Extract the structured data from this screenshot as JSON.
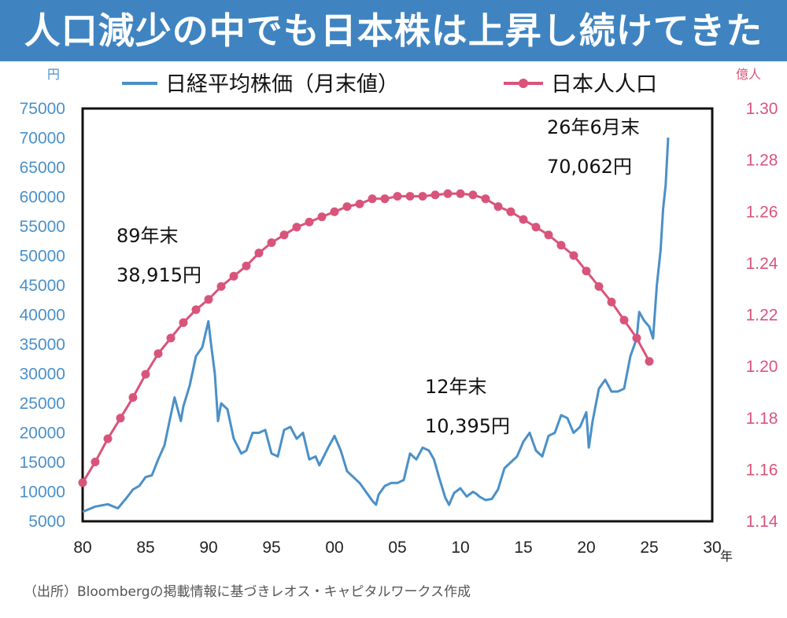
{
  "header": {
    "title": "人口減少の中でも日本株は上昇し続けてきた"
  },
  "source": "（出所）Bloombergの掲載情報に基づきレオス・キャピタルワークス作成",
  "colors": {
    "banner": "#3f84c1",
    "nikkei": "#4a90c8",
    "population": "#d9547a"
  },
  "chart_data": {
    "type": "line",
    "title": "人口減少の中でも日本株は上昇し続けてきた",
    "x_axis": {
      "unit": "年",
      "range": [
        1980,
        2030
      ],
      "ticks": [
        {
          "v": 1980,
          "label": "80"
        },
        {
          "v": 1985,
          "label": "85"
        },
        {
          "v": 1990,
          "label": "90"
        },
        {
          "v": 1995,
          "label": "95"
        },
        {
          "v": 2000,
          "label": "00"
        },
        {
          "v": 2005,
          "label": "05"
        },
        {
          "v": 2010,
          "label": "10"
        },
        {
          "v": 2015,
          "label": "15"
        },
        {
          "v": 2020,
          "label": "20"
        },
        {
          "v": 2025,
          "label": "25"
        },
        {
          "v": 2030,
          "label": "30"
        }
      ]
    },
    "y_left": {
      "unit": "円",
      "range": [
        5000,
        75000
      ],
      "ticks": [
        "75000",
        "70000",
        "65000",
        "60000",
        "55000",
        "50000",
        "45000",
        "40000",
        "35000",
        "30000",
        "25000",
        "20000",
        "15000",
        "10000",
        "5000"
      ]
    },
    "y_right": {
      "unit": "億人",
      "range": [
        1.14,
        1.3
      ],
      "ticks": [
        "1.30",
        "1.28",
        "1.26",
        "1.24",
        "1.22",
        "1.20",
        "1.18",
        "1.16",
        "1.14"
      ]
    },
    "legend_position": "top",
    "series": [
      {
        "name": "日経平均株価（月末値）",
        "axis": "left",
        "style": "line",
        "x": [
          1980.0,
          1981.0,
          1982.0,
          1982.8,
          1983.5,
          1984.0,
          1984.5,
          1985.0,
          1985.5,
          1986.0,
          1986.5,
          1987.0,
          1987.3,
          1987.8,
          1988.0,
          1988.5,
          1989.0,
          1989.5,
          1989.99,
          1990.2,
          1990.5,
          1990.75,
          1991.0,
          1991.5,
          1992.0,
          1992.6,
          1993.0,
          1993.5,
          1994.0,
          1994.5,
          1995.0,
          1995.5,
          1996.0,
          1996.5,
          1997.0,
          1997.5,
          1998.0,
          1998.5,
          1998.8,
          1999.5,
          2000.0,
          2000.5,
          2001.0,
          2001.5,
          2002.0,
          2002.5,
          2003.0,
          2003.3,
          2003.5,
          2004.0,
          2004.5,
          2005.0,
          2005.5,
          2006.0,
          2006.5,
          2007.0,
          2007.5,
          2007.9,
          2008.3,
          2008.8,
          2009.1,
          2009.5,
          2010.0,
          2010.5,
          2011.0,
          2011.3,
          2011.5,
          2012.0,
          2012.5,
          2012.99,
          2013.5,
          2014.0,
          2014.5,
          2015.0,
          2015.5,
          2016.0,
          2016.5,
          2017.0,
          2017.5,
          2018.0,
          2018.5,
          2018.99,
          2019.5,
          2020.0,
          2020.2,
          2020.5,
          2021.0,
          2021.5,
          2022.0,
          2022.5,
          2023.0,
          2023.5,
          2024.0,
          2024.2,
          2024.6,
          2025.0,
          2025.3,
          2025.6,
          2025.9,
          2026.1,
          2026.3,
          2026.5
        ],
        "y": [
          6600,
          7500,
          7900,
          7200,
          9000,
          10400,
          11000,
          12500,
          12800,
          15500,
          17900,
          23000,
          26000,
          22000,
          24500,
          28000,
          33000,
          34500,
          38915,
          35000,
          30000,
          22000,
          25000,
          24000,
          19000,
          16500,
          17000,
          20000,
          20000,
          20500,
          16500,
          16000,
          20500,
          21000,
          19000,
          20000,
          15500,
          16000,
          14500,
          17500,
          19500,
          17000,
          13500,
          12500,
          11500,
          10000,
          8500,
          7800,
          9500,
          11000,
          11500,
          11500,
          12000,
          16500,
          15500,
          17500,
          17000,
          15500,
          12500,
          9000,
          7800,
          9800,
          10600,
          9200,
          10000,
          9600,
          9200,
          8600,
          8800,
          10395,
          14000,
          15000,
          16000,
          18500,
          20000,
          17000,
          16000,
          19500,
          20000,
          23000,
          22500,
          20000,
          21000,
          23500,
          17500,
          22000,
          27500,
          29000,
          27000,
          27000,
          27500,
          33000,
          36000,
          40500,
          39000,
          38000,
          36000,
          45000,
          51000,
          58000,
          62000,
          70062
        ]
      },
      {
        "name": "日本人人口",
        "axis": "right",
        "style": "line-markers",
        "x": [
          1980,
          1981,
          1982,
          1983,
          1984,
          1985,
          1986,
          1987,
          1988,
          1989,
          1990,
          1991,
          1992,
          1993,
          1994,
          1995,
          1996,
          1997,
          1998,
          1999,
          2000,
          2001,
          2002,
          2003,
          2004,
          2005,
          2006,
          2007,
          2008,
          2009,
          2010,
          2011,
          2012,
          2013,
          2014,
          2015,
          2016,
          2017,
          2018,
          2019,
          2020,
          2021,
          2022,
          2023,
          2024,
          2025
        ],
        "y": [
          1.155,
          1.163,
          1.172,
          1.18,
          1.188,
          1.197,
          1.205,
          1.211,
          1.217,
          1.222,
          1.226,
          1.231,
          1.235,
          1.239,
          1.244,
          1.248,
          1.251,
          1.254,
          1.256,
          1.258,
          1.26,
          1.262,
          1.263,
          1.265,
          1.265,
          1.266,
          1.266,
          1.266,
          1.2665,
          1.267,
          1.267,
          1.2665,
          1.265,
          1.262,
          1.26,
          1.257,
          1.254,
          1.251,
          1.247,
          1.243,
          1.237,
          1.231,
          1.225,
          1.218,
          1.211,
          1.202
        ]
      }
    ],
    "annotations": [
      {
        "line1": "89年末",
        "line2": "38,915円",
        "x": 1989,
        "y": 38915
      },
      {
        "line1": "12年末",
        "line2": "10,395円",
        "x": 2012,
        "y": 10395
      },
      {
        "line1": "26年6月末",
        "line2": "70,062円",
        "x": 2026.5,
        "y": 70062
      }
    ]
  }
}
